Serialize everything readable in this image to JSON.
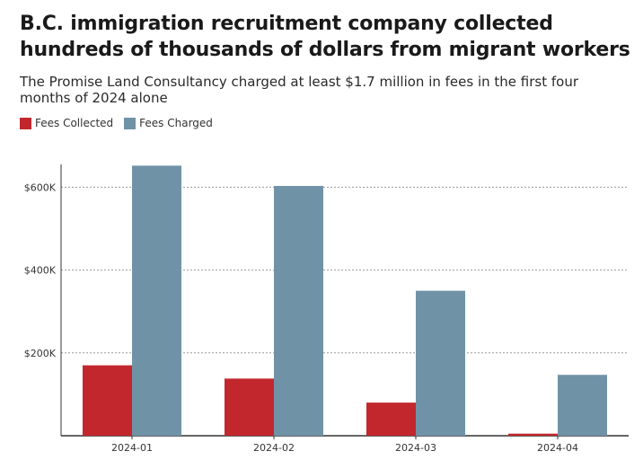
{
  "header": {
    "title": "B.C. immigration recruitment company collected hundreds of thousands of dollars from migrant workers",
    "subtitle": "The Promise Land Consultancy charged at least $1.7 million in fees in the first four months of 2024 alone"
  },
  "chart_data": {
    "type": "bar",
    "title": "B.C. immigration recruitment company collected hundreds of thousands of dollars from migrant workers",
    "subtitle": "The Promise Land Consultancy charged at least $1.7 million in fees in the first four months of 2024 alone",
    "categories": [
      "2024-01",
      "2024-02",
      "2024-03",
      "2024-04"
    ],
    "series": [
      {
        "name": "Fees Collected",
        "color": "#c1272d",
        "values": [
          170000,
          138000,
          80000,
          5000
        ]
      },
      {
        "name": "Fees Charged",
        "color": "#7092a7",
        "values": [
          652000,
          603000,
          350000,
          147000
        ]
      }
    ],
    "xlabel": "",
    "ylabel": "",
    "ylim": [
      0,
      655000
    ],
    "yticks": [
      {
        "value": 200000,
        "label": "$200K"
      },
      {
        "value": 400000,
        "label": "$400K"
      },
      {
        "value": 600000,
        "label": "$600K"
      }
    ],
    "grid": true,
    "legend": "top-left"
  }
}
